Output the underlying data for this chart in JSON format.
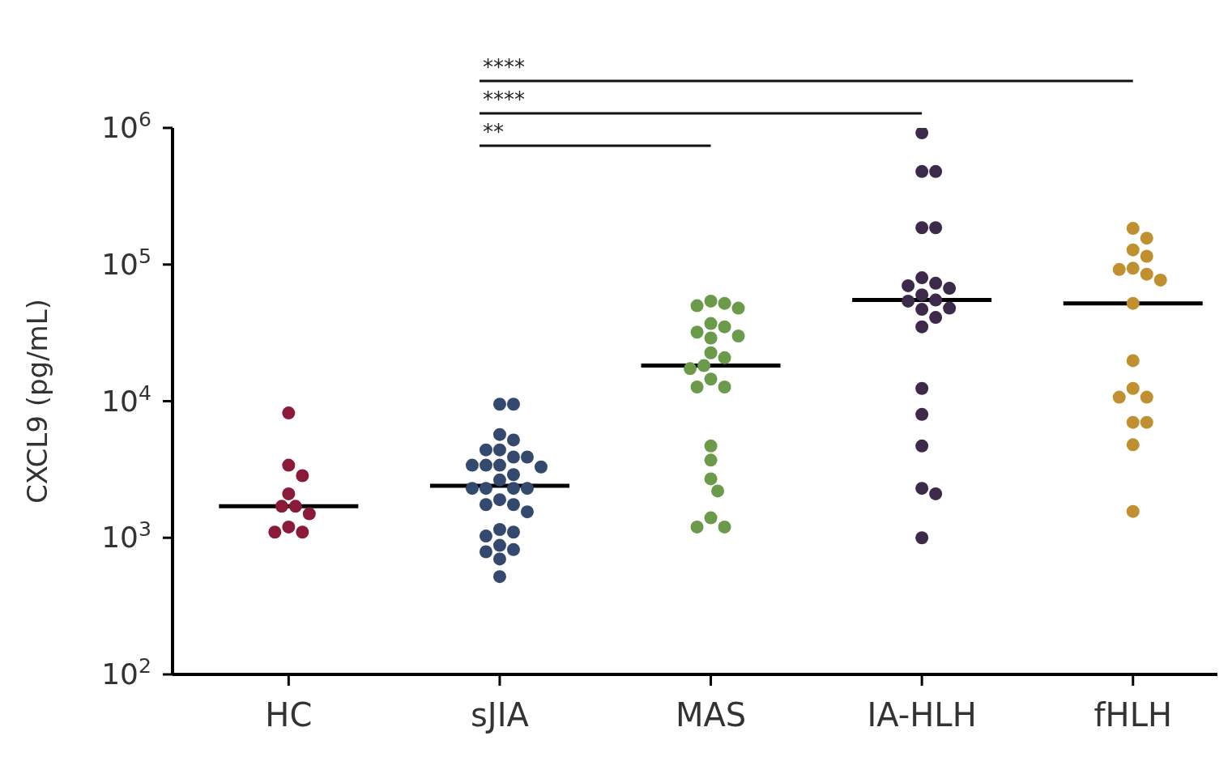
{
  "chart_data": {
    "type": "scatter",
    "ylabel": "CXCL9 (pg/mL)",
    "categories": [
      "HC",
      "sJIA",
      "MAS",
      "IA-HLH",
      "fHLH"
    ],
    "series": [
      {
        "color": "#8b1a3a",
        "x": [
          "HC",
          "HC",
          "HC",
          "HC",
          "HC",
          "HC",
          "HC",
          "HC",
          "HC",
          "HC"
        ],
        "values": [
          8200,
          3400,
          2850,
          2100,
          1700,
          1700,
          1500,
          1200,
          1100,
          1100
        ]
      },
      {
        "color": "#34496e",
        "x": [
          "sJIA",
          "sJIA",
          "sJIA",
          "sJIA",
          "sJIA",
          "sJIA",
          "sJIA",
          "sJIA",
          "sJIA",
          "sJIA",
          "sJIA",
          "sJIA",
          "sJIA",
          "sJIA",
          "sJIA",
          "sJIA",
          "sJIA",
          "sJIA",
          "sJIA",
          "sJIA",
          "sJIA",
          "sJIA",
          "sJIA",
          "sJIA",
          "sJIA",
          "sJIA",
          "sJIA",
          "sJIA",
          "sJIA",
          "sJIA"
        ],
        "values": [
          9500,
          9500,
          5700,
          5200,
          4400,
          4400,
          3900,
          3900,
          3400,
          3400,
          3400,
          3300,
          2900,
          2650,
          2300,
          2300,
          2300,
          1900,
          1750,
          1750,
          1550,
          1150,
          1100,
          1030,
          880,
          820,
          790,
          700,
          520,
          2300
        ]
      },
      {
        "color": "#6a9a4a",
        "x": [
          "MAS",
          "MAS",
          "MAS",
          "MAS",
          "MAS",
          "MAS",
          "MAS",
          "MAS",
          "MAS",
          "MAS",
          "MAS",
          "MAS",
          "MAS",
          "MAS",
          "MAS",
          "MAS",
          "MAS",
          "MAS",
          "MAS",
          "MAS",
          "MAS",
          "MAS",
          "MAS"
        ],
        "values": [
          54000,
          48000,
          50000,
          52000,
          37000,
          35000,
          32000,
          30000,
          29000,
          22600,
          20800,
          18200,
          17300,
          14500,
          12700,
          12700,
          4700,
          3700,
          2700,
          2200,
          1400,
          1200,
          1200
        ]
      },
      {
        "color": "#3d2a4a",
        "x": [
          "IA-HLH",
          "IA-HLH",
          "IA-HLH",
          "IA-HLH",
          "IA-HLH",
          "IA-HLH",
          "IA-HLH",
          "IA-HLH",
          "IA-HLH",
          "IA-HLH",
          "IA-HLH",
          "IA-HLH",
          "IA-HLH",
          "IA-HLH",
          "IA-HLH",
          "IA-HLH",
          "IA-HLH",
          "IA-HLH",
          "IA-HLH",
          "IA-HLH",
          "IA-HLH",
          "IA-HLH"
        ],
        "values": [
          920000,
          480000,
          480000,
          186000,
          186000,
          80000,
          73000,
          70000,
          67000,
          55000,
          54000,
          48000,
          47000,
          41000,
          35000,
          12400,
          8000,
          4700,
          2300,
          2100,
          1000,
          60000
        ]
      },
      {
        "color": "#c09030",
        "x": [
          "fHLH",
          "fHLH",
          "fHLH",
          "fHLH",
          "fHLH",
          "fHLH",
          "fHLH",
          "fHLH",
          "fHLH",
          "fHLH",
          "fHLH",
          "fHLH",
          "fHLH",
          "fHLH",
          "fHLH",
          "fHLH",
          "fHLH"
        ],
        "values": [
          184000,
          156000,
          128000,
          115000,
          94000,
          92000,
          85000,
          77000,
          52000,
          19800,
          12400,
          10700,
          10700,
          7000,
          7000,
          4800,
          1560
        ]
      },
      {
        "type": "box",
        "color": "#000000",
        "boxes": [
          {
            "low": 1700,
            "q1": 1700,
            "median": 1700,
            "q3": 1700,
            "high": 1700
          },
          {
            "low": 2400,
            "q1": 2400,
            "median": 2400,
            "q3": 2400,
            "high": 2400
          },
          {
            "low": 18200,
            "q1": 18200,
            "median": 18200,
            "q3": 18200,
            "high": 18200
          },
          {
            "low": 55000,
            "q1": 55000,
            "median": 55000,
            "q3": 55000,
            "high": 55000
          },
          {
            "low": 52000,
            "q1": 52000,
            "median": 52000,
            "q3": 52000,
            "high": 52000
          }
        ]
      }
    ],
    "ylim": [
      100,
      1000000
    ],
    "yticks": [
      {
        "value": 100,
        "label": "10$^{2}$"
      },
      {
        "value": 1000,
        "label": "10$^{3}$"
      },
      {
        "value": 10000,
        "label": "10$^{4}$"
      },
      {
        "value": 100000,
        "label": "10$^{5}$"
      },
      {
        "value": 1000000,
        "label": "10$^{6}$"
      }
    ],
    "log": true,
    "marker": "circle",
    "grid": false,
    "legend": false,
    "annotations": [
      "****",
      "****",
      "**"
    ]
  }
}
